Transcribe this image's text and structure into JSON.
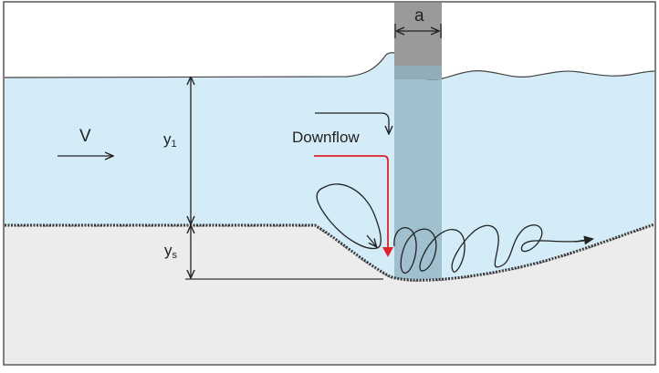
{
  "labels": {
    "pier_width": "a",
    "velocity": "V",
    "flow_depth": "y",
    "flow_depth_sub": "1",
    "scour_depth": "y",
    "scour_depth_sub": "s",
    "downflow": "Downflow"
  },
  "colors": {
    "water": "#d3ecf7",
    "bed": "#ececec",
    "pier": "#9a9a9a",
    "downflow_arrow": "#e0202a",
    "frame": "#555555",
    "lines": "#222222"
  }
}
